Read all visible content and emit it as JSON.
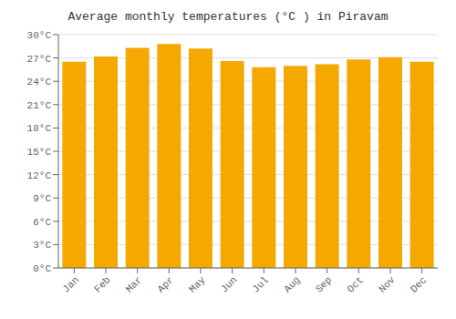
{
  "chart_data": {
    "type": "bar",
    "title": "Average monthly temperatures (°C ) in Piravam",
    "categories": [
      "Jan",
      "Feb",
      "Mar",
      "Apr",
      "May",
      "Jun",
      "Jul",
      "Aug",
      "Sep",
      "Oct",
      "Nov",
      "Dec"
    ],
    "values": [
      26.5,
      27.2,
      28.3,
      28.8,
      28.2,
      26.6,
      25.8,
      26.0,
      26.2,
      26.8,
      27.1,
      26.5
    ],
    "color": "#F5A800",
    "ylim": [
      0,
      30
    ],
    "yticks": [
      {
        "value": 0,
        "label": "0°C"
      },
      {
        "value": 3,
        "label": "3°C"
      },
      {
        "value": 6,
        "label": "6°C"
      },
      {
        "value": 9,
        "label": "9°C"
      },
      {
        "value": 12,
        "label": "12°C"
      },
      {
        "value": 15,
        "label": "15°C"
      },
      {
        "value": 18,
        "label": "18°C"
      },
      {
        "value": 21,
        "label": "21°C"
      },
      {
        "value": 24,
        "label": "24°C"
      },
      {
        "value": 27,
        "label": "27°C"
      },
      {
        "value": 30,
        "label": "30°C"
      }
    ],
    "grid": true
  }
}
